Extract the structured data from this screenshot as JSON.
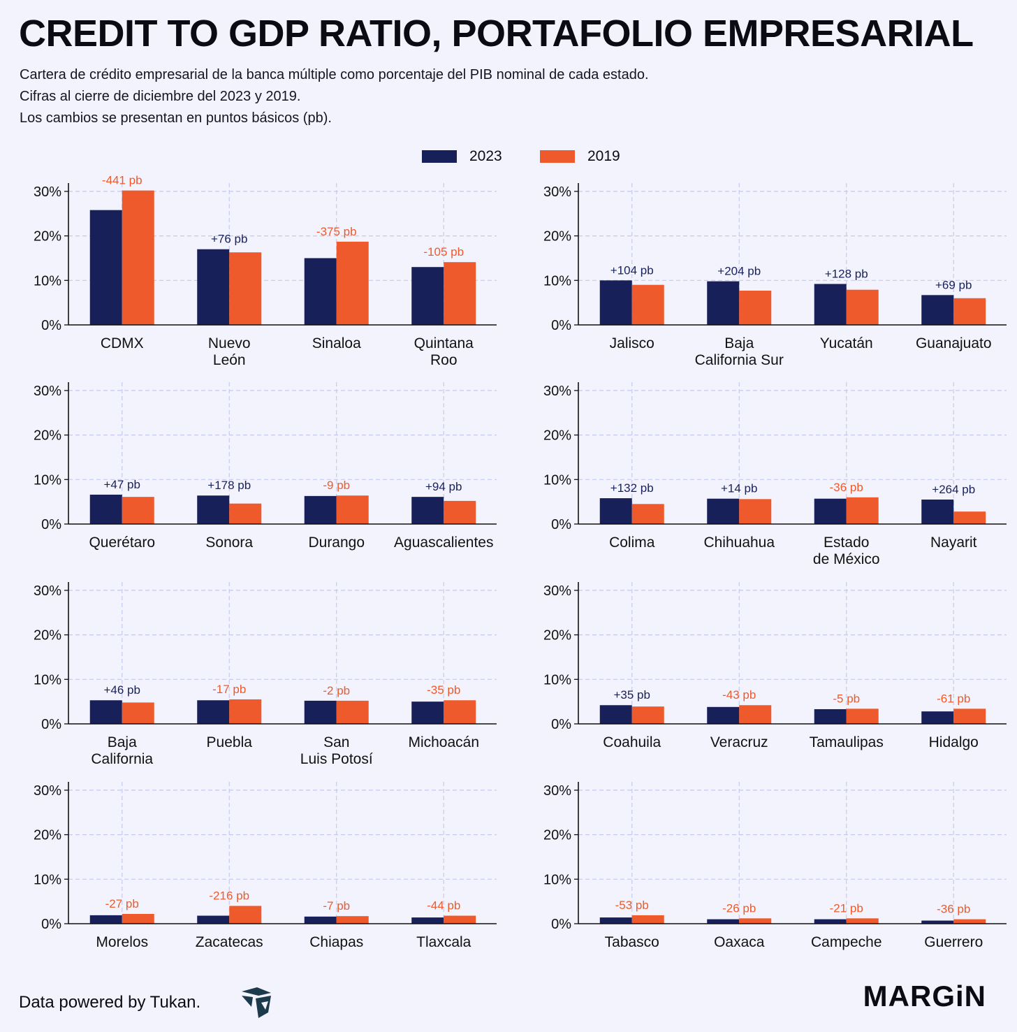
{
  "title": "CREDIT TO GDP RATIO, PORTAFOLIO EMPRESARIAL",
  "subtitle": [
    "Cartera de crédito empresarial de la banca múltiple como porcentaje del PIB nominal de cada estado.",
    "Cifras al cierre de diciembre del 2023 y 2019.",
    "Los cambios se presentan en puntos básicos (pb)."
  ],
  "colors": {
    "s2023": "#18205a",
    "s2019": "#ee5a2c",
    "grid": "#c5c9ef",
    "axis": "#111111",
    "positive_label": "#18205a",
    "negative_label": "#ee5a2c"
  },
  "legend": [
    {
      "label": "2023",
      "color": "#18205a"
    },
    {
      "label": "2019",
      "color": "#ee5a2c"
    }
  ],
  "footer": {
    "source": "Data powered by Tukan.",
    "logo_icon": "tukan-logo-icon",
    "brand": "MARGiN"
  },
  "chart_data": [
    {
      "type": "bar",
      "ylim": [
        0,
        32
      ],
      "yticks": [
        "0%",
        "10%",
        "20%",
        "30%"
      ],
      "ytick_values": [
        0,
        10,
        20,
        30
      ],
      "series_names": [
        "2023",
        "2019"
      ],
      "categories": [
        [
          "CDMX"
        ],
        [
          "Nuevo",
          "León"
        ],
        [
          "Sinaloa"
        ],
        [
          "Quintana",
          "Roo"
        ]
      ],
      "series": [
        {
          "name": "2023",
          "values": [
            25.8,
            17.0,
            15.0,
            13.0
          ]
        },
        {
          "name": "2019",
          "values": [
            30.2,
            16.3,
            18.7,
            14.1
          ]
        }
      ],
      "labels": [
        "-441 pb",
        "+76 pb",
        "-375 pb",
        "-105 pb"
      ]
    },
    {
      "type": "bar",
      "ylim": [
        0,
        32
      ],
      "yticks": [
        "0%",
        "10%",
        "20%",
        "30%"
      ],
      "ytick_values": [
        0,
        10,
        20,
        30
      ],
      "series_names": [
        "2023",
        "2019"
      ],
      "categories": [
        [
          "Jalisco"
        ],
        [
          "Baja",
          "California Sur"
        ],
        [
          "Yucatán"
        ],
        [
          "Guanajuato"
        ]
      ],
      "series": [
        {
          "name": "2023",
          "values": [
            10.0,
            9.8,
            9.2,
            6.7
          ]
        },
        {
          "name": "2019",
          "values": [
            9.0,
            7.7,
            7.9,
            6.0
          ]
        }
      ],
      "labels": [
        "+104 pb",
        "+204 pb",
        "+128 pb",
        "+69 pb"
      ]
    },
    {
      "type": "bar",
      "ylim": [
        0,
        32
      ],
      "yticks": [
        "0%",
        "10%",
        "20%",
        "30%"
      ],
      "ytick_values": [
        0,
        10,
        20,
        30
      ],
      "series_names": [
        "2023",
        "2019"
      ],
      "categories": [
        [
          "Querétaro"
        ],
        [
          "Sonora"
        ],
        [
          "Durango"
        ],
        [
          "Aguascalientes"
        ]
      ],
      "series": [
        {
          "name": "2023",
          "values": [
            6.6,
            6.4,
            6.3,
            6.1
          ]
        },
        {
          "name": "2019",
          "values": [
            6.1,
            4.6,
            6.4,
            5.2
          ]
        }
      ],
      "labels": [
        "+47 pb",
        "+178 pb",
        "-9 pb",
        "+94 pb"
      ]
    },
    {
      "type": "bar",
      "ylim": [
        0,
        32
      ],
      "yticks": [
        "0%",
        "10%",
        "20%",
        "30%"
      ],
      "ytick_values": [
        0,
        10,
        20,
        30
      ],
      "series_names": [
        "2023",
        "2019"
      ],
      "categories": [
        [
          "Colima"
        ],
        [
          "Chihuahua"
        ],
        [
          "Estado",
          "de México"
        ],
        [
          "Nayarit"
        ]
      ],
      "series": [
        {
          "name": "2023",
          "values": [
            5.8,
            5.7,
            5.7,
            5.5
          ]
        },
        {
          "name": "2019",
          "values": [
            4.5,
            5.6,
            6.0,
            2.8
          ]
        }
      ],
      "labels": [
        "+132 pb",
        "+14 pb",
        "-36 pb",
        "+264 pb"
      ]
    },
    {
      "type": "bar",
      "ylim": [
        0,
        32
      ],
      "yticks": [
        "0%",
        "10%",
        "20%",
        "30%"
      ],
      "ytick_values": [
        0,
        10,
        20,
        30
      ],
      "series_names": [
        "2023",
        "2019"
      ],
      "categories": [
        [
          "Baja",
          "California"
        ],
        [
          "Puebla"
        ],
        [
          "San",
          "Luis Potosí"
        ],
        [
          "Michoacán"
        ]
      ],
      "series": [
        {
          "name": "2023",
          "values": [
            5.3,
            5.3,
            5.2,
            5.0
          ]
        },
        {
          "name": "2019",
          "values": [
            4.8,
            5.5,
            5.2,
            5.3
          ]
        }
      ],
      "labels": [
        "+46 pb",
        "-17 pb",
        "-2 pb",
        "-35 pb"
      ]
    },
    {
      "type": "bar",
      "ylim": [
        0,
        32
      ],
      "yticks": [
        "0%",
        "10%",
        "20%",
        "30%"
      ],
      "ytick_values": [
        0,
        10,
        20,
        30
      ],
      "series_names": [
        "2023",
        "2019"
      ],
      "categories": [
        [
          "Coahuila"
        ],
        [
          "Veracruz"
        ],
        [
          "Tamaulipas"
        ],
        [
          "Hidalgo"
        ]
      ],
      "series": [
        {
          "name": "2023",
          "values": [
            4.2,
            3.8,
            3.3,
            2.8
          ]
        },
        {
          "name": "2019",
          "values": [
            3.9,
            4.2,
            3.4,
            3.4
          ]
        }
      ],
      "labels": [
        "+35 pb",
        "-43 pb",
        "-5 pb",
        "-61 pb"
      ]
    },
    {
      "type": "bar",
      "ylim": [
        0,
        32
      ],
      "yticks": [
        "0%",
        "10%",
        "20%",
        "30%"
      ],
      "ytick_values": [
        0,
        10,
        20,
        30
      ],
      "series_names": [
        "2023",
        "2019"
      ],
      "categories": [
        [
          "Morelos"
        ],
        [
          "Zacatecas"
        ],
        [
          "Chiapas"
        ],
        [
          "Tlaxcala"
        ]
      ],
      "series": [
        {
          "name": "2023",
          "values": [
            1.9,
            1.8,
            1.6,
            1.4
          ]
        },
        {
          "name": "2019",
          "values": [
            2.2,
            4.0,
            1.7,
            1.8
          ]
        }
      ],
      "labels": [
        "-27 pb",
        "-216 pb",
        "-7 pb",
        "-44 pb"
      ]
    },
    {
      "type": "bar",
      "ylim": [
        0,
        32
      ],
      "yticks": [
        "0%",
        "10%",
        "20%",
        "30%"
      ],
      "ytick_values": [
        0,
        10,
        20,
        30
      ],
      "series_names": [
        "2023",
        "2019"
      ],
      "categories": [
        [
          "Tabasco"
        ],
        [
          "Oaxaca"
        ],
        [
          "Campeche"
        ],
        [
          "Guerrero"
        ]
      ],
      "series": [
        {
          "name": "2023",
          "values": [
            1.4,
            1.0,
            1.0,
            0.7
          ]
        },
        {
          "name": "2019",
          "values": [
            1.9,
            1.2,
            1.2,
            1.0
          ]
        }
      ],
      "labels": [
        "-53 pb",
        "-26 pb",
        "-21 pb",
        "-36 pb"
      ]
    }
  ]
}
